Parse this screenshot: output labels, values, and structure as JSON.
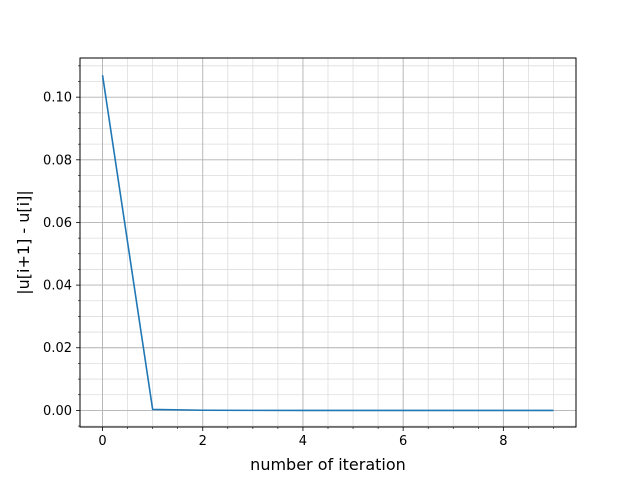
{
  "chart_data": {
    "type": "line",
    "title": "",
    "xlabel": "number of iteration",
    "ylabel": "|u[i+1] - u[i]|",
    "xlim": [
      -0.45,
      9.45
    ],
    "ylim": [
      -0.0053,
      0.1125
    ],
    "x_ticks": [
      0,
      2,
      4,
      6,
      8
    ],
    "x_minor_step": 0.5,
    "y_ticks": [
      0.0,
      0.02,
      0.04,
      0.06,
      0.08,
      0.1
    ],
    "y_tick_labels": [
      "0.00",
      "0.02",
      "0.04",
      "0.06",
      "0.08",
      "0.10"
    ],
    "y_minor_step": 0.005,
    "grid": {
      "major": true,
      "minor": true
    },
    "series": [
      {
        "color": "#1f77b4",
        "x": [
          0,
          1,
          2,
          3,
          4,
          5,
          6,
          7,
          8,
          9
        ],
        "y": [
          0.107,
          0.0003,
          5e-05,
          1e-05,
          0.0,
          0.0,
          0.0,
          0.0,
          0.0,
          0.0
        ]
      }
    ]
  }
}
